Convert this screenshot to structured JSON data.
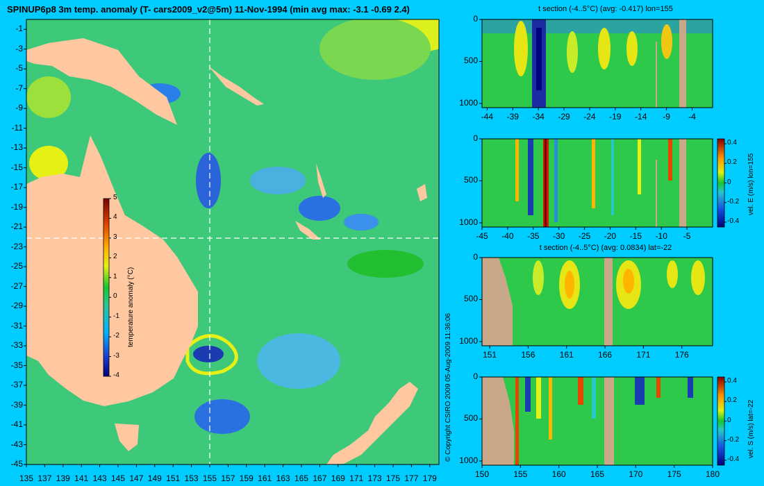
{
  "main": {
    "title": "SPINUP6p8 3m temp. anomaly (T- cars2009_v2@5m) 11-Nov-1994 (min avg max: -3.1 -0.69 2.4)",
    "lat_ticks": [
      "-1",
      "-3",
      "-5",
      "-7",
      "-9",
      "-11",
      "-13",
      "-15",
      "-17",
      "-19",
      "-21",
      "-23",
      "-25",
      "-27",
      "-29",
      "-31",
      "-33",
      "-35",
      "-37",
      "-39",
      "-41",
      "-43",
      "-45"
    ],
    "lon_ticks": [
      "135",
      "137",
      "139",
      "141",
      "143",
      "145",
      "147",
      "149",
      "151",
      "153",
      "155",
      "157",
      "159",
      "161",
      "163",
      "165",
      "167",
      "169",
      "171",
      "173",
      "175",
      "177",
      "179"
    ],
    "colorbar": {
      "label": "temperature anomaly (°C)",
      "ticks": [
        "5",
        "4",
        "3",
        "2",
        "1",
        "0",
        "-1",
        "-2",
        "-3",
        "-4"
      ]
    },
    "section_lon": "155",
    "section_lat": "-22"
  },
  "copyright": "© Copyright CSIRO 2009   05-Aug-2009 11:36:06",
  "panels": {
    "p1": {
      "title": "t section (-4..5°C) (avg: -0.417) lon=155",
      "y_ticks": [
        "0",
        "500",
        "1000"
      ],
      "x_ticks": [
        "-44",
        "-39",
        "-34",
        "-29",
        "-24",
        "-19",
        "-14",
        "-9",
        "-4"
      ]
    },
    "p2": {
      "title": "",
      "y_ticks": [
        "0",
        "500",
        "1000"
      ],
      "x_ticks": [
        "-45",
        "-40",
        "-35",
        "-30",
        "-25",
        "-20",
        "-15",
        "-10",
        "-5"
      ],
      "cb_label": "vel. E (m/s) lon=155",
      "cb_ticks": [
        "0.4",
        "0.2",
        "0",
        "-0.2",
        "-0.4"
      ]
    },
    "p3": {
      "title": "t section (-4..5°C) (avg: 0.0834) lat=-22",
      "y_ticks": [
        "0",
        "500",
        "1000"
      ],
      "x_ticks": [
        "151",
        "156",
        "161",
        "166",
        "171",
        "176"
      ]
    },
    "p4": {
      "title": "",
      "y_ticks": [
        "0",
        "500",
        "1000"
      ],
      "x_ticks": [
        "150",
        "155",
        "160",
        "165",
        "170",
        "175",
        "180"
      ],
      "cb_label": "vel. S (m/s) lat=-22",
      "cb_ticks": [
        "0.4",
        "0.2",
        "0",
        "-0.2",
        "-0.4"
      ]
    }
  },
  "chart_data": [
    {
      "type": "heatmap",
      "title": "SPINUP6p8 3m temp. anomaly (T- cars2009_v2@5m) 11-Nov-1994 (min avg max: -3.1 -0.69 2.4)",
      "x_range": [
        135,
        180
      ],
      "y_range": [
        -45,
        0
      ],
      "colorbar_range": [
        -4,
        5
      ],
      "colorbar_label": "temperature anomaly (°C)"
    },
    {
      "type": "heatmap",
      "title": "t section (-4..5°C) (avg: -0.417) lon=155",
      "x_range": [
        -45,
        0
      ],
      "y_range": [
        1050,
        0
      ]
    },
    {
      "type": "heatmap",
      "colorbar_label": "vel. E (m/s) lon=155",
      "x_range": [
        -45,
        0
      ],
      "y_range": [
        1050,
        0
      ],
      "colorbar_range": [
        -0.4,
        0.4
      ]
    },
    {
      "type": "heatmap",
      "title": "t section (-4..5°C) (avg: 0.0834) lat=-22",
      "x_range": [
        150,
        180
      ],
      "y_range": [
        1050,
        0
      ]
    },
    {
      "type": "heatmap",
      "colorbar_label": "vel. S (m/s) lat=-22",
      "x_range": [
        150,
        180
      ],
      "y_range": [
        1050,
        0
      ],
      "colorbar_range": [
        -0.4,
        0.4
      ]
    }
  ]
}
